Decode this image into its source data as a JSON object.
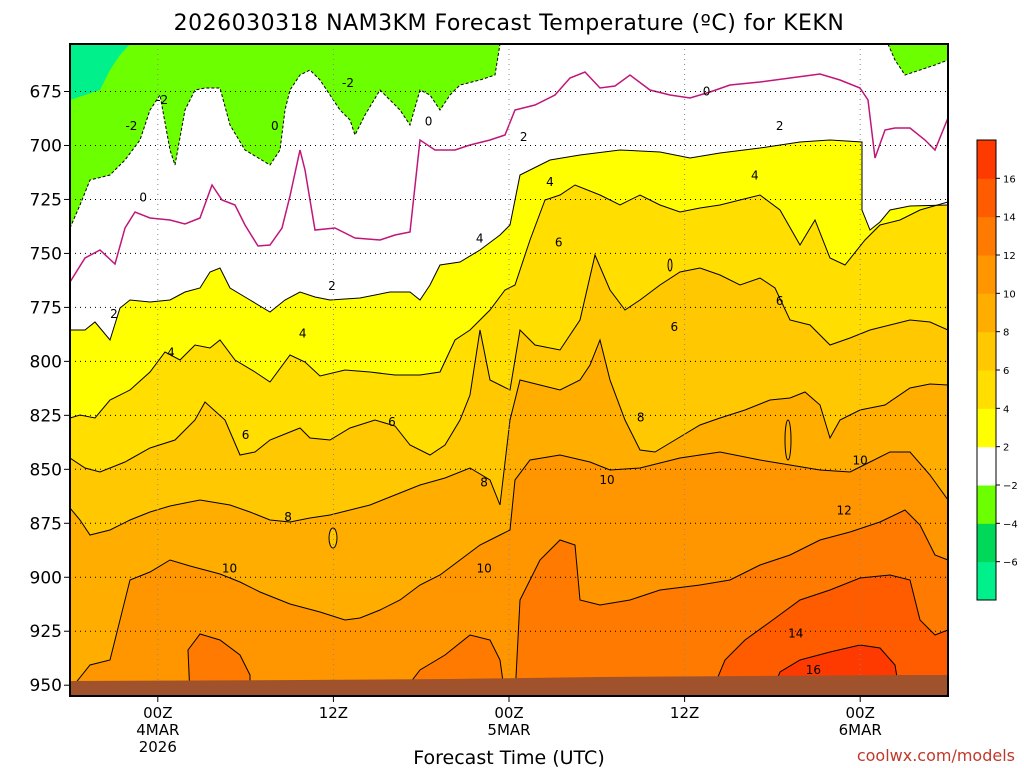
{
  "chart_data": {
    "type": "heatmap",
    "title": "2026030318 NAM3KM Forecast Temperature (ºC) for KEKN",
    "xlabel": "Forecast Time (UTC)",
    "ylabel": "",
    "credit": "coolwx.com/models",
    "y_ticks": [
      "675",
      "700",
      "725",
      "750",
      "775",
      "800",
      "825",
      "850",
      "875",
      "900",
      "925",
      "950"
    ],
    "ylim": [
      955,
      653
    ],
    "x_ticks": [
      {
        "line1": "00Z",
        "line2": "4MAR",
        "line3": "2026"
      },
      {
        "line1": "12Z",
        "line2": "",
        "line3": ""
      },
      {
        "line1": "00Z",
        "line2": "5MAR",
        "line3": ""
      },
      {
        "line1": "12Z",
        "line2": "",
        "line3": ""
      },
      {
        "line1": "00Z",
        "line2": "6MAR",
        "line3": ""
      }
    ],
    "xlim_hours": [
      -6,
      54
    ],
    "levels": [
      {
        "range": "<-6",
        "color": "#00f18c"
      },
      {
        "range": "-6..-4",
        "color": "#00d85a"
      },
      {
        "range": "-4..-2",
        "color": "#6cff00"
      },
      {
        "range": "-2..2",
        "color": "#ffffff"
      },
      {
        "range": "2..4",
        "color": "#ffff00"
      },
      {
        "range": "4..6",
        "color": "#ffde00"
      },
      {
        "range": "6..8",
        "color": "#ffc800"
      },
      {
        "range": "8..10",
        "color": "#ffae00"
      },
      {
        "range": "10..12",
        "color": "#ff9600"
      },
      {
        "range": "12..14",
        "color": "#ff7a00"
      },
      {
        "range": "14..16",
        "color": "#ff5c00"
      },
      {
        "range": ">16",
        "color": "#ff3a00"
      }
    ],
    "colorbar_labels": [
      "16",
      "14",
      "12",
      "10",
      "8",
      "6",
      "4",
      "2",
      "−2",
      "−4",
      "−6"
    ],
    "contour_labels": [
      {
        "text": "-2",
        "hour": 0.3,
        "hpa": 679
      },
      {
        "text": "-2",
        "hour": -1.8,
        "hpa": 691
      },
      {
        "text": "-2",
        "hour": 13.0,
        "hpa": 671
      },
      {
        "text": "0",
        "hour": 8.0,
        "hpa": 691
      },
      {
        "text": "0",
        "hour": 18.5,
        "hpa": 689
      },
      {
        "text": "0",
        "hour": -1.0,
        "hpa": 724
      },
      {
        "text": "0",
        "hour": 37.5,
        "hpa": 675
      },
      {
        "text": "2",
        "hour": 25.0,
        "hpa": 696
      },
      {
        "text": "2",
        "hour": 42.5,
        "hpa": 691
      },
      {
        "text": "2",
        "hour": 11.9,
        "hpa": 765
      },
      {
        "text": "2",
        "hour": -3.0,
        "hpa": 778
      },
      {
        "text": "4",
        "hour": 26.8,
        "hpa": 717
      },
      {
        "text": "4",
        "hour": 40.8,
        "hpa": 714
      },
      {
        "text": "4",
        "hour": 22.0,
        "hpa": 743
      },
      {
        "text": "4",
        "hour": 9.9,
        "hpa": 787
      },
      {
        "text": "4",
        "hour": 0.9,
        "hpa": 796
      },
      {
        "text": "6",
        "hour": 27.4,
        "hpa": 745
      },
      {
        "text": "6",
        "hour": 42.5,
        "hpa": 772
      },
      {
        "text": "6",
        "hour": 35.3,
        "hpa": 784
      },
      {
        "text": "6",
        "hour": 16.0,
        "hpa": 828
      },
      {
        "text": "6",
        "hour": 6.0,
        "hpa": 834
      },
      {
        "text": "8",
        "hour": 33.0,
        "hpa": 826
      },
      {
        "text": "8",
        "hour": 22.3,
        "hpa": 856
      },
      {
        "text": "8",
        "hour": 8.9,
        "hpa": 872
      },
      {
        "text": "10",
        "hour": 48.0,
        "hpa": 846
      },
      {
        "text": "10",
        "hour": 30.7,
        "hpa": 855
      },
      {
        "text": "10",
        "hour": 22.3,
        "hpa": 896
      },
      {
        "text": "10",
        "hour": 4.9,
        "hpa": 896
      },
      {
        "text": "12",
        "hour": 46.9,
        "hpa": 869
      },
      {
        "text": "14",
        "hour": 43.6,
        "hpa": 926
      },
      {
        "text": "16",
        "hour": 44.8,
        "hpa": 943
      }
    ]
  }
}
